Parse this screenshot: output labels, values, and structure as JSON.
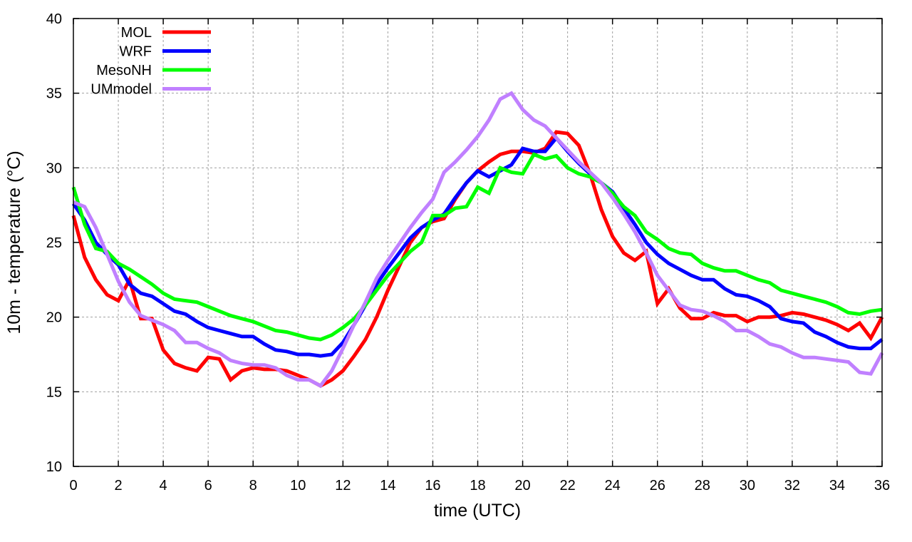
{
  "chart_data": {
    "type": "line",
    "title": "",
    "xlabel": "time (UTC)",
    "ylabel": "10m - temperature (°C)",
    "xlim": [
      0,
      36
    ],
    "ylim": [
      10,
      40
    ],
    "xticks": [
      0,
      2,
      4,
      6,
      8,
      10,
      12,
      14,
      16,
      18,
      20,
      22,
      24,
      26,
      28,
      30,
      32,
      34,
      36
    ],
    "yticks": [
      10,
      15,
      20,
      25,
      30,
      35,
      40
    ],
    "grid": true,
    "legend_position": "top-left",
    "x_step": 0.5,
    "series": [
      {
        "name": "MOL",
        "color": "#ff0000",
        "values": [
          26.8,
          24.0,
          22.5,
          21.5,
          21.1,
          22.5,
          19.9,
          19.9,
          17.8,
          16.9,
          16.6,
          16.4,
          17.3,
          17.2,
          15.8,
          16.4,
          16.6,
          16.5,
          16.5,
          16.4,
          16.1,
          15.8,
          15.4,
          15.8,
          16.4,
          17.4,
          18.5,
          20.0,
          21.8,
          23.4,
          25.0,
          26.0,
          26.4,
          26.6,
          27.9,
          29.0,
          29.8,
          30.4,
          30.9,
          31.1,
          31.1,
          31.0,
          31.3,
          32.4,
          32.3,
          31.5,
          29.6,
          27.2,
          25.4,
          24.3,
          23.8,
          24.4,
          20.9,
          21.9,
          20.6,
          19.9,
          19.9,
          20.3,
          20.1,
          20.1,
          19.7,
          20.0,
          20.0,
          20.1,
          20.3,
          20.2,
          20.0,
          19.8,
          19.5,
          19.1,
          19.6,
          18.6,
          20.0
        ]
      },
      {
        "name": "WRF",
        "color": "#0000ff",
        "values": [
          27.6,
          26.5,
          25.0,
          24.2,
          23.5,
          22.2,
          21.6,
          21.4,
          20.9,
          20.4,
          20.2,
          19.7,
          19.3,
          19.1,
          18.9,
          18.7,
          18.7,
          18.2,
          17.8,
          17.7,
          17.5,
          17.5,
          17.4,
          17.5,
          18.3,
          19.5,
          20.8,
          22.2,
          23.3,
          24.3,
          25.3,
          26.0,
          26.5,
          26.9,
          28.0,
          29.0,
          29.8,
          29.4,
          29.8,
          30.2,
          31.3,
          31.1,
          31.1,
          32.0,
          31.1,
          30.3,
          29.6,
          29.0,
          28.4,
          27.3,
          26.2,
          25.0,
          24.2,
          23.6,
          23.2,
          22.8,
          22.5,
          22.5,
          21.9,
          21.5,
          21.4,
          21.1,
          20.7,
          19.9,
          19.7,
          19.6,
          19.0,
          18.7,
          18.3,
          18.0,
          17.9,
          17.9,
          18.5
        ]
      },
      {
        "name": "MesoNH",
        "color": "#00ff00",
        "values": [
          28.7,
          26.2,
          24.6,
          24.4,
          23.6,
          23.2,
          22.7,
          22.2,
          21.6,
          21.2,
          21.1,
          21.0,
          20.7,
          20.4,
          20.1,
          19.9,
          19.7,
          19.4,
          19.1,
          19.0,
          18.8,
          18.6,
          18.5,
          18.8,
          19.3,
          19.9,
          20.8,
          21.8,
          22.8,
          23.6,
          24.4,
          25.0,
          26.8,
          26.8,
          27.3,
          27.4,
          28.7,
          28.3,
          30.0,
          29.7,
          29.6,
          30.9,
          30.6,
          30.8,
          30.0,
          29.6,
          29.4,
          29.0,
          28.3,
          27.4,
          26.8,
          25.7,
          25.2,
          24.6,
          24.3,
          24.2,
          23.6,
          23.3,
          23.1,
          23.1,
          22.8,
          22.5,
          22.3,
          21.8,
          21.6,
          21.4,
          21.2,
          21.0,
          20.7,
          20.3,
          20.2,
          20.4,
          20.5
        ]
      },
      {
        "name": "UMmodel",
        "color": "#c080ff",
        "values": [
          27.7,
          27.4,
          26.0,
          24.2,
          22.4,
          21.0,
          20.1,
          19.8,
          19.5,
          19.1,
          18.3,
          18.3,
          17.9,
          17.6,
          17.1,
          16.9,
          16.8,
          16.8,
          16.6,
          16.1,
          15.8,
          15.8,
          15.4,
          16.4,
          17.9,
          19.5,
          21.0,
          22.6,
          23.8,
          24.9,
          26.0,
          27.0,
          27.9,
          29.7,
          30.4,
          31.2,
          32.1,
          33.2,
          34.6,
          35.0,
          33.9,
          33.2,
          32.8,
          32.0,
          31.2,
          30.4,
          29.7,
          29.0,
          28.0,
          26.9,
          25.7,
          24.3,
          22.8,
          21.8,
          20.8,
          20.5,
          20.4,
          20.1,
          19.7,
          19.1,
          19.1,
          18.7,
          18.2,
          18.0,
          17.6,
          17.3,
          17.3,
          17.2,
          17.1,
          17.0,
          16.3,
          16.2,
          17.6
        ]
      }
    ]
  }
}
